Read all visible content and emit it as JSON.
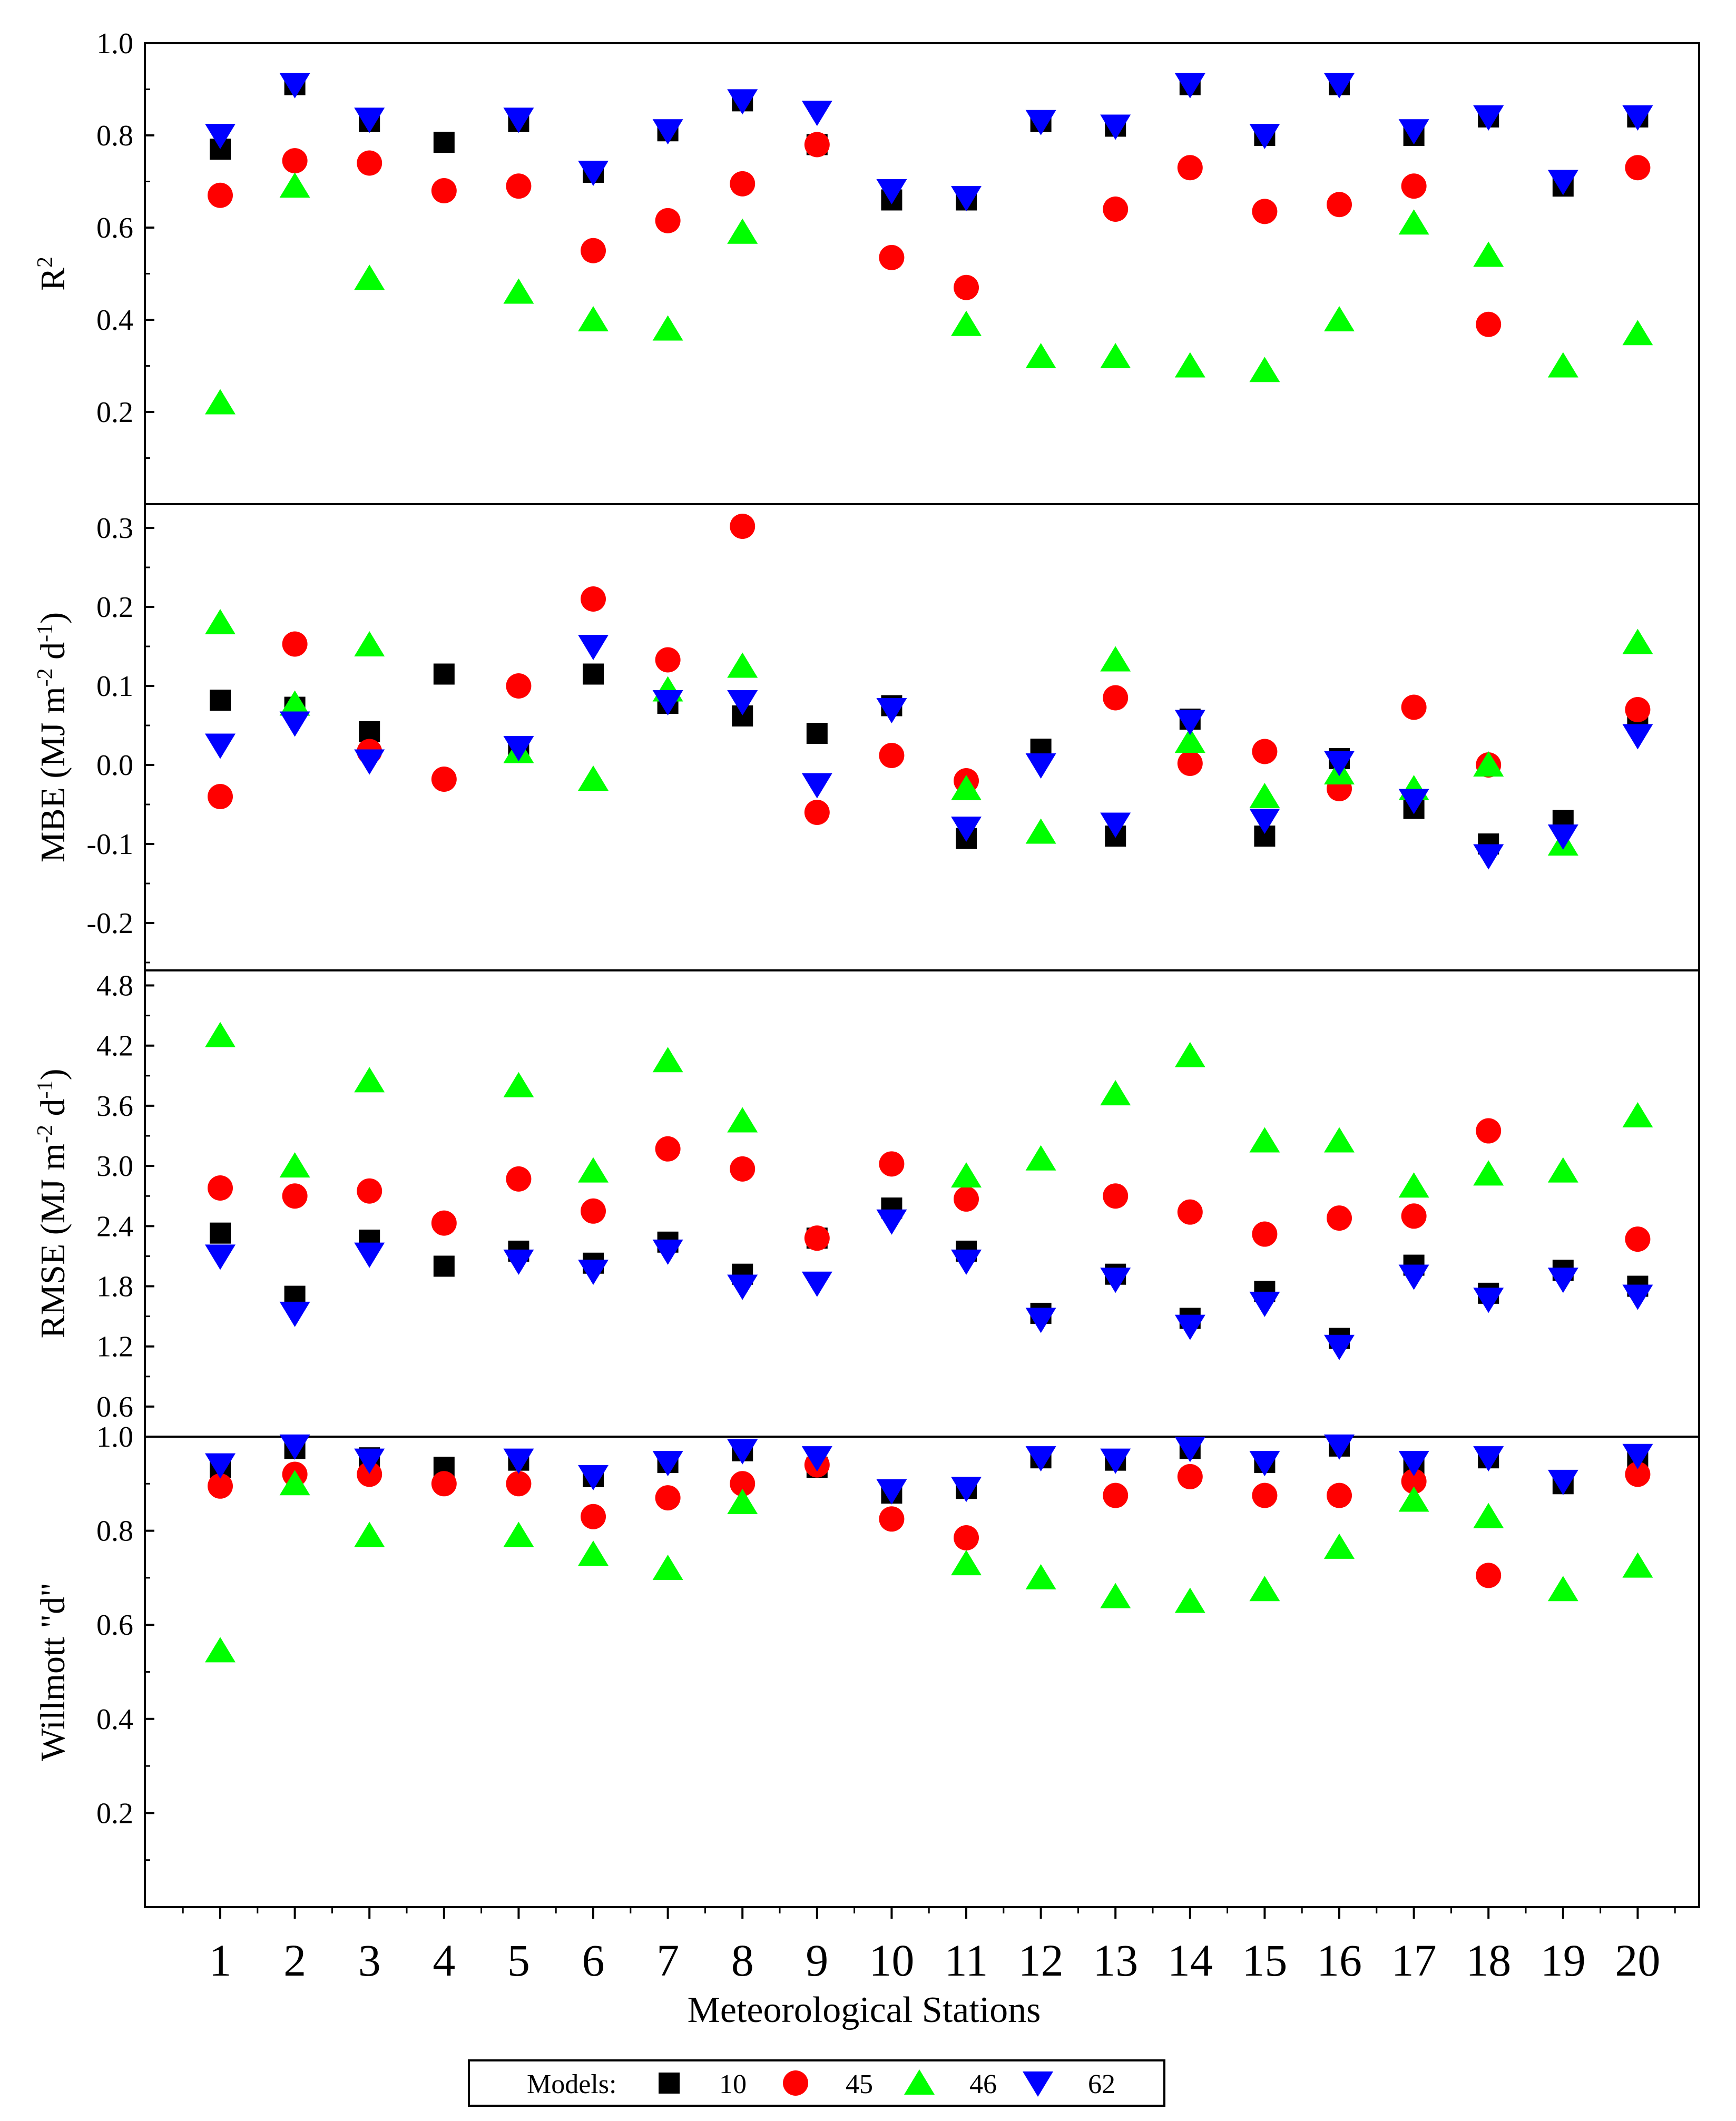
{
  "chart_data": {
    "type": "scatter",
    "xlabel": "Meteorological Stations",
    "x": [
      1,
      2,
      3,
      4,
      5,
      6,
      7,
      8,
      9,
      10,
      11,
      12,
      13,
      14,
      15,
      16,
      17,
      18,
      19,
      20
    ],
    "x_tick_labels": [
      "1",
      "2",
      "3",
      "4",
      "5",
      "6",
      "7",
      "8",
      "9",
      "10",
      "11",
      "12",
      "13",
      "14",
      "15",
      "16",
      "17",
      "18",
      "19",
      "20"
    ],
    "legend": {
      "title": "Models:",
      "placement": "bottom-center",
      "entries": [
        {
          "name": "10",
          "marker": "square",
          "color": "#000000"
        },
        {
          "name": "45",
          "marker": "circle",
          "color": "#ff0000"
        },
        {
          "name": "46",
          "marker": "triangle-up",
          "color": "#00ff00"
        },
        {
          "name": "62",
          "marker": "triangle-down",
          "color": "#0000ff"
        }
      ]
    },
    "panels": [
      {
        "id": "r2",
        "ylabel": "R",
        "ylabel_sup": "2",
        "ylim": [
          0.0,
          1.0
        ],
        "yticks": [
          0.2,
          0.4,
          0.6,
          0.8,
          1.0
        ],
        "ytick_labels": [
          "0.2",
          "0.4",
          "0.6",
          "0.8",
          "1.0"
        ],
        "series": [
          {
            "name": "10",
            "values": [
              0.77,
              0.91,
              0.83,
              0.785,
              0.83,
              0.72,
              0.81,
              0.875,
              0.78,
              0.66,
              0.66,
              0.83,
              0.82,
              0.91,
              0.8,
              0.91,
              0.8,
              0.84,
              0.69,
              0.84
            ]
          },
          {
            "name": "45",
            "values": [
              0.67,
              0.745,
              0.74,
              0.68,
              0.69,
              0.55,
              0.615,
              0.695,
              0.78,
              0.535,
              0.47,
              null,
              0.64,
              0.73,
              0.635,
              0.65,
              0.69,
              0.39,
              null,
              0.73
            ]
          },
          {
            "name": "46",
            "values": [
              0.22,
              0.69,
              0.49,
              null,
              0.46,
              0.4,
              0.38,
              0.59,
              null,
              null,
              0.39,
              0.32,
              0.32,
              0.3,
              0.29,
              0.4,
              0.61,
              0.54,
              0.3,
              0.37
            ]
          },
          {
            "name": "62",
            "values": [
              0.8,
              0.91,
              0.835,
              null,
              0.835,
              0.72,
              0.81,
              0.875,
              0.85,
              0.68,
              0.665,
              0.83,
              0.82,
              0.91,
              0.8,
              0.91,
              0.81,
              0.84,
              0.7,
              0.84
            ]
          }
        ]
      },
      {
        "id": "mbe",
        "ylabel": "MBE (MJ m",
        "ylabel_sup1": "-2",
        "ylabel_mid": " d",
        "ylabel_sup2": "-1",
        "ylabel_end": ")",
        "ylim": [
          -0.26,
          0.33
        ],
        "yticks": [
          -0.2,
          -0.1,
          0.0,
          0.1,
          0.2,
          0.3
        ],
        "ytick_labels": [
          "-0.2",
          "-0.1",
          "0.0",
          "0.1",
          "0.2",
          "0.3"
        ],
        "series": [
          {
            "name": "10",
            "values": [
              0.082,
              0.073,
              0.042,
              0.115,
              0.022,
              0.115,
              0.078,
              0.062,
              0.04,
              0.075,
              -0.093,
              0.02,
              -0.09,
              0.058,
              -0.09,
              0.008,
              -0.055,
              -0.1,
              -0.07,
              0.06
            ]
          },
          {
            "name": "45",
            "values": [
              -0.04,
              0.153,
              0.017,
              -0.018,
              0.1,
              0.21,
              0.133,
              0.302,
              -0.06,
              0.012,
              -0.02,
              null,
              0.085,
              0.002,
              0.017,
              -0.03,
              0.073,
              0.0,
              null,
              0.07
            ]
          },
          {
            "name": "46",
            "values": [
              0.18,
              0.077,
              0.152,
              null,
              0.017,
              -0.018,
              0.095,
              0.125,
              null,
              null,
              -0.03,
              -0.085,
              0.133,
              0.03,
              -0.04,
              -0.01,
              -0.03,
              0.0,
              -0.1,
              0.155
            ]
          },
          {
            "name": "62",
            "values": [
              0.025,
              0.053,
              0.005,
              null,
              0.022,
              0.15,
              0.08,
              0.08,
              -0.025,
              0.07,
              -0.08,
              0.0,
              -0.075,
              0.055,
              -0.07,
              0.003,
              -0.045,
              -0.115,
              -0.09,
              0.037
            ]
          }
        ]
      },
      {
        "id": "rmse",
        "ylabel": "RMSE (MJ m",
        "ylabel_sup1": "-2",
        "ylabel_mid": " d",
        "ylabel_sup2": "-1",
        "ylabel_end": ")",
        "ylim": [
          0.3,
          4.95
        ],
        "yticks": [
          0.6,
          1.2,
          1.8,
          2.4,
          3.0,
          3.6,
          4.2,
          4.8
        ],
        "ytick_labels": [
          "0.6",
          "1.2",
          "1.8",
          "2.4",
          "3.0",
          "3.6",
          "4.2",
          "4.8"
        ],
        "series": [
          {
            "name": "10",
            "values": [
              2.33,
              1.7,
              2.26,
              2.0,
              2.15,
              2.03,
              2.24,
              1.92,
              2.28,
              2.58,
              2.15,
              1.53,
              1.92,
              1.48,
              1.75,
              1.28,
              2.01,
              1.73,
              1.96,
              1.8
            ]
          },
          {
            "name": "45",
            "values": [
              2.78,
              2.7,
              2.75,
              2.43,
              2.87,
              2.55,
              3.17,
              2.97,
              2.28,
              3.02,
              2.67,
              null,
              2.7,
              2.54,
              2.32,
              2.48,
              2.5,
              3.35,
              null,
              2.27
            ]
          },
          {
            "name": "46",
            "values": [
              4.3,
              3.0,
              3.85,
              null,
              3.8,
              2.95,
              4.05,
              3.45,
              null,
              null,
              2.9,
              3.07,
              3.72,
              4.1,
              3.25,
              3.25,
              2.8,
              2.92,
              2.95,
              3.5
            ]
          },
          {
            "name": "62",
            "values": [
              2.1,
              1.53,
              2.12,
              null,
              2.05,
              1.95,
              2.15,
              1.8,
              1.83,
              2.45,
              2.05,
              1.47,
              1.87,
              1.4,
              1.63,
              1.2,
              1.9,
              1.67,
              1.87,
              1.7
            ]
          }
        ]
      },
      {
        "id": "willmott",
        "ylabel": "Willmott \"d\"",
        "ylim": [
          0.0,
          1.0
        ],
        "yticks": [
          0.2,
          0.4,
          0.6,
          0.8,
          1.0
        ],
        "ytick_labels": [
          "0.2",
          "0.4",
          "0.6",
          "0.8",
          "1.0"
        ],
        "series": [
          {
            "name": "10",
            "values": [
              0.935,
              0.975,
              0.955,
              0.935,
              0.95,
              0.915,
              0.945,
              0.97,
              0.935,
              0.88,
              0.89,
              0.955,
              0.95,
              0.975,
              0.945,
              0.98,
              0.93,
              0.955,
              0.9,
              0.955
            ]
          },
          {
            "name": "45",
            "values": [
              0.895,
              0.92,
              0.92,
              0.9,
              0.9,
              0.83,
              0.87,
              0.9,
              0.94,
              0.825,
              0.785,
              null,
              0.875,
              0.915,
              0.875,
              0.875,
              0.905,
              0.705,
              null,
              0.92
            ]
          },
          {
            "name": "46",
            "values": [
              0.545,
              0.9,
              0.79,
              null,
              0.79,
              0.75,
              0.72,
              0.86,
              null,
              null,
              0.73,
              0.7,
              0.66,
              0.65,
              0.675,
              0.765,
              0.865,
              0.83,
              0.675,
              0.725
            ]
          },
          {
            "name": "62",
            "values": [
              0.94,
              0.98,
              0.95,
              null,
              0.95,
              0.915,
              0.945,
              0.97,
              0.955,
              0.885,
              0.89,
              0.955,
              0.95,
              0.975,
              0.945,
              0.98,
              0.945,
              0.955,
              0.905,
              0.96
            ]
          }
        ]
      }
    ]
  }
}
